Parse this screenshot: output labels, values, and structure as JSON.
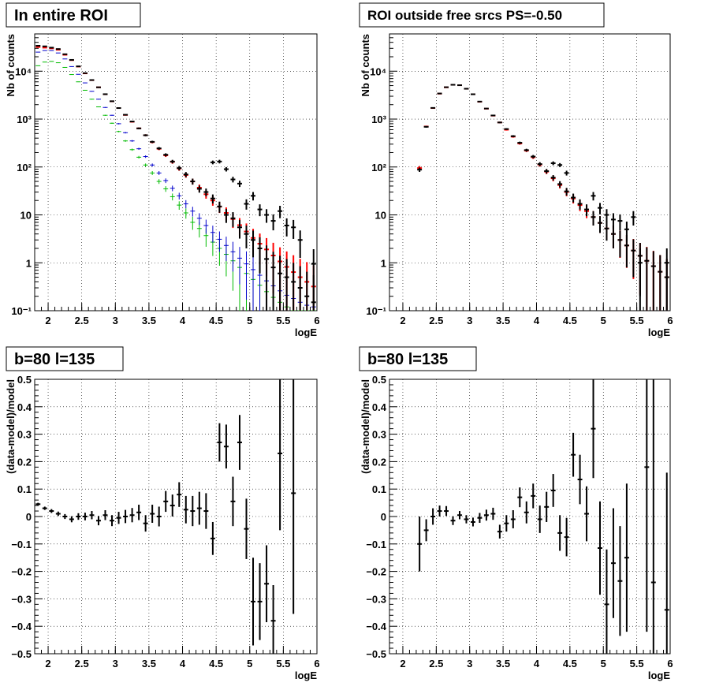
{
  "colors": {
    "data": "#000000",
    "model": "#ff0000",
    "blue": "#0000cc",
    "green": "#00bb00"
  },
  "chart_data": [
    {
      "panel": "top-left",
      "type": "scatter",
      "title": "In entire ROI",
      "xlabel": "logE",
      "ylabel": "Nb of counts",
      "xlim": [
        1.8,
        6.0
      ],
      "ylim": [
        0.1,
        60000
      ],
      "yscale": "log",
      "grid": true,
      "x_ticks": [
        "2",
        "2.5",
        "3",
        "3.5",
        "4",
        "4.5",
        "5",
        "5.5",
        "6"
      ],
      "y_ticks": [
        "10⁻¹",
        "1",
        "10",
        "10²",
        "10³",
        "10⁴"
      ],
      "series": [
        {
          "color": "green",
          "x": [
            1.85,
            1.95,
            2.05,
            2.15,
            2.25,
            2.35,
            2.45,
            2.55,
            2.65,
            2.75,
            2.85,
            2.95,
            3.05,
            3.15,
            3.25,
            3.35,
            3.45,
            3.55,
            3.65,
            3.75,
            3.85,
            3.95,
            4.05,
            4.15,
            4.25,
            4.35,
            4.45,
            4.55,
            4.65,
            4.75,
            4.85,
            4.95,
            5.05,
            5.15,
            5.25,
            5.35,
            5.45,
            5.55,
            5.65,
            5.75,
            5.85,
            5.95
          ],
          "y": [
            13000,
            15500,
            16000,
            15000,
            12000,
            8500,
            6000,
            4000,
            2600,
            1800,
            1200,
            820,
            550,
            350,
            230,
            160,
            110,
            75,
            50,
            35,
            24,
            16,
            11,
            7,
            5.2,
            3.7,
            2.7,
            2.0,
            1.5,
            1.1,
            0.8,
            0.6,
            0.45,
            0.34,
            0.25,
            0.19,
            0.15,
            0.12,
            0.1,
            0.1,
            0.1,
            0.1
          ]
        },
        {
          "color": "blue",
          "x": [
            1.85,
            1.95,
            2.05,
            2.15,
            2.25,
            2.35,
            2.45,
            2.55,
            2.65,
            2.75,
            2.85,
            2.95,
            3.05,
            3.15,
            3.25,
            3.35,
            3.45,
            3.55,
            3.65,
            3.75,
            3.85,
            3.95,
            4.05,
            4.15,
            4.25,
            4.35,
            4.45,
            4.55,
            4.65,
            4.75,
            4.85,
            4.95,
            5.05,
            5.15,
            5.25,
            5.35,
            5.45,
            5.55,
            5.65,
            5.75,
            5.85,
            5.95
          ],
          "y": [
            25000,
            27000,
            27000,
            24000,
            18000,
            12500,
            8600,
            5700,
            3800,
            2600,
            1750,
            1200,
            800,
            520,
            350,
            240,
            165,
            110,
            75,
            52,
            36,
            25,
            17,
            12,
            8.5,
            6,
            4.3,
            3.1,
            2.3,
            1.7,
            1.25,
            0.95,
            0.72,
            0.55,
            0.42,
            0.33,
            0.26,
            0.21,
            0.18,
            0.15,
            0.13,
            0.12
          ]
        },
        {
          "color": "model",
          "x": [
            1.85,
            1.95,
            2.05,
            2.15,
            2.25,
            2.35,
            2.45,
            2.55,
            2.65,
            2.75,
            2.85,
            2.95,
            3.05,
            3.15,
            3.25,
            3.35,
            3.45,
            3.55,
            3.65,
            3.75,
            3.85,
            3.95,
            4.05,
            4.15,
            4.25,
            4.35,
            4.45,
            4.55,
            4.65,
            4.75,
            4.85,
            4.95,
            5.05,
            5.15,
            5.25,
            5.35,
            5.45,
            5.55,
            5.65,
            5.75,
            5.85,
            5.95
          ],
          "y": [
            32000,
            31000,
            30000,
            28000,
            22000,
            17000,
            12500,
            9000,
            6500,
            4600,
            3300,
            2350,
            1700,
            1220,
            880,
            640,
            460,
            330,
            240,
            175,
            128,
            93,
            68,
            50,
            37,
            27,
            20,
            14.8,
            11,
            8.2,
            6.1,
            4.5,
            3.3,
            2.5,
            1.9,
            1.42,
            1.07,
            0.82,
            0.64,
            0.5,
            0.4,
            0.32
          ]
        },
        {
          "color": "data",
          "x": [
            1.85,
            1.95,
            2.05,
            2.15,
            2.25,
            2.35,
            2.45,
            2.55,
            2.65,
            2.75,
            2.85,
            2.95,
            3.05,
            3.15,
            3.25,
            3.35,
            3.45,
            3.55,
            3.65,
            3.75,
            3.85,
            3.95,
            4.05,
            4.15,
            4.25,
            4.35,
            4.45,
            4.55,
            4.65,
            4.75,
            4.85,
            4.95,
            5.05,
            5.15,
            5.25,
            5.35,
            5.45,
            5.55,
            5.65,
            5.75,
            5.85,
            5.95
          ],
          "y": [
            34000,
            33000,
            31000,
            29000,
            22600,
            17200,
            12600,
            9100,
            6530,
            4610,
            3310,
            2360,
            1700,
            1230,
            890,
            640,
            460,
            335,
            245,
            180,
            130,
            95,
            70,
            50,
            35,
            30,
            22,
            15,
            10,
            8.5,
            5.5,
            4,
            3,
            2,
            1.2,
            0.8,
            0.6,
            0.5,
            0.4,
            0.3,
            0.2,
            0.15
          ],
          "yerr": [
            180,
            180,
            175,
            170,
            150,
            130,
            112,
            95,
            80,
            68,
            57,
            48,
            41,
            35,
            30,
            25,
            21,
            18,
            16,
            13,
            11,
            10,
            8.4,
            7.1,
            5.9,
            5.5,
            4.7,
            3.9,
            3.2,
            2.9,
            2.3,
            2,
            1.7,
            1.4,
            1.1,
            0.9,
            0.8,
            0.7,
            0.6,
            0.55,
            0.45,
            0.4
          ]
        }
      ],
      "visible_data_points": [
        {
          "x": 4.45,
          "y": 125
        },
        {
          "x": 4.55,
          "y": 130
        },
        {
          "x": 4.65,
          "y": 90
        },
        {
          "x": 4.75,
          "y": 55
        },
        {
          "x": 4.85,
          "y": 45
        },
        {
          "x": 4.95,
          "y": 17
        },
        {
          "x": 5.05,
          "y": 25
        },
        {
          "x": 5.15,
          "y": 13
        },
        {
          "x": 5.25,
          "y": 10
        },
        {
          "x": 5.35,
          "y": 7.5
        },
        {
          "x": 5.45,
          "y": 12
        },
        {
          "x": 5.55,
          "y": 6
        },
        {
          "x": 5.65,
          "y": 5.5
        },
        {
          "x": 5.75,
          "y": 3
        },
        {
          "x": 5.95,
          "y": 0.95
        }
      ]
    },
    {
      "panel": "top-right",
      "type": "scatter",
      "title": "ROI outside free srcs PS=-0.50",
      "xlabel": "logE",
      "ylabel": "Nb of counts",
      "xlim": [
        1.8,
        6.0
      ],
      "ylim": [
        0.1,
        60000
      ],
      "yscale": "log",
      "grid": true,
      "x_ticks": [
        "2",
        "2.5",
        "3",
        "3.5",
        "4",
        "4.5",
        "5",
        "5.5",
        "6"
      ],
      "y_ticks": [
        "10⁻¹",
        "1",
        "10",
        "10²",
        "10³",
        "10⁴"
      ],
      "series": [
        {
          "color": "model",
          "x": [
            2.25,
            2.35,
            2.45,
            2.55,
            2.65,
            2.75,
            2.85,
            2.95,
            3.05,
            3.15,
            3.25,
            3.35,
            3.45,
            3.55,
            3.65,
            3.75,
            3.85,
            3.95,
            4.05,
            4.15,
            4.25,
            4.35,
            4.45,
            4.55,
            4.65,
            4.75,
            4.85,
            4.95,
            5.05,
            5.15,
            5.25,
            5.35,
            5.45,
            5.55,
            5.65,
            5.75,
            5.85,
            5.95
          ],
          "y": [
            95,
            700,
            1700,
            3400,
            4600,
            5200,
            5100,
            4300,
            3300,
            2300,
            1650,
            1180,
            850,
            600,
            430,
            310,
            220,
            160,
            112,
            80,
            58,
            42,
            30,
            22,
            16,
            12,
            9,
            6.8,
            5.2,
            4,
            3,
            2.3,
            1.8,
            1.4,
            1.1,
            0.85,
            0.65,
            0.5
          ]
        },
        {
          "color": "data",
          "x": [
            2.25,
            2.35,
            2.45,
            2.55,
            2.65,
            2.75,
            2.85,
            2.95,
            3.05,
            3.15,
            3.25,
            3.35,
            3.45,
            3.55,
            3.65,
            3.75,
            3.85,
            3.95,
            4.05,
            4.15,
            4.25,
            4.35,
            4.45,
            4.55,
            4.65,
            4.75,
            4.85,
            4.95,
            5.05,
            5.15,
            5.25,
            5.35,
            5.45,
            5.55,
            5.65,
            5.75,
            5.85,
            5.95
          ],
          "y": [
            88,
            690,
            1710,
            3420,
            4630,
            5200,
            5100,
            4300,
            3300,
            2320,
            1660,
            1190,
            850,
            620,
            440,
            320,
            225,
            165,
            115,
            82,
            60,
            44,
            31,
            23,
            17,
            13,
            9,
            6.8,
            5.2,
            4,
            3,
            2.3,
            1.8,
            1.4,
            1.1,
            0.85,
            0.65,
            0.5
          ],
          "yerr": [
            9,
            26,
            41,
            58,
            68,
            72,
            71,
            66,
            57,
            48,
            41,
            34,
            29,
            25,
            21,
            18,
            15,
            13,
            11,
            9,
            7.7,
            6.6,
            5.6,
            4.8,
            4.1,
            3.6,
            3,
            2.6,
            2.3,
            2,
            1.7,
            1.5,
            1.3,
            1.2,
            1,
            0.9,
            0.8,
            0.7
          ]
        }
      ],
      "visible_data_points": [
        {
          "x": 4.25,
          "y": 120
        },
        {
          "x": 4.35,
          "y": 110
        },
        {
          "x": 4.45,
          "y": 75
        },
        {
          "x": 4.85,
          "y": 25
        },
        {
          "x": 4.95,
          "y": 14
        },
        {
          "x": 5.05,
          "y": 10
        },
        {
          "x": 5.15,
          "y": 8
        },
        {
          "x": 5.25,
          "y": 7.5
        },
        {
          "x": 5.35,
          "y": 5
        },
        {
          "x": 5.45,
          "y": 9
        },
        {
          "x": 5.55,
          "y": 1
        },
        {
          "x": 5.95,
          "y": 1
        }
      ]
    },
    {
      "panel": "bottom-left",
      "type": "scatter",
      "title": "b=80 l=135",
      "xlabel": "logE",
      "ylabel": "(data-model)/model",
      "xlim": [
        1.8,
        6.0
      ],
      "ylim": [
        -0.5,
        0.5
      ],
      "grid": true,
      "x_ticks": [
        "2",
        "2.5",
        "3",
        "3.5",
        "4",
        "4.5",
        "5",
        "5.5",
        "6"
      ],
      "y_ticks": [
        "−0.5",
        "−0.4",
        "−0.3",
        "−0.2",
        "−0.1",
        "0",
        "0.1",
        "0.2",
        "0.3",
        "0.4",
        "0.5"
      ],
      "series": [
        {
          "color": "data",
          "x": [
            1.85,
            1.95,
            2.05,
            2.15,
            2.25,
            2.35,
            2.45,
            2.55,
            2.65,
            2.75,
            2.85,
            2.95,
            3.05,
            3.15,
            3.25,
            3.35,
            3.45,
            3.55,
            3.65,
            3.75,
            3.85,
            3.95,
            4.05,
            4.15,
            4.25,
            4.35,
            4.45,
            4.55,
            4.65,
            4.75,
            4.85,
            4.95,
            5.05,
            5.15,
            5.25,
            5.35,
            5.45,
            5.65
          ],
          "y": [
            0.045,
            0.03,
            0.02,
            0.01,
            0.0,
            -0.01,
            0.0,
            0.0,
            0.005,
            -0.015,
            0.005,
            -0.015,
            -0.005,
            0.0,
            0.005,
            0.015,
            -0.025,
            0.01,
            0.0,
            0.055,
            0.04,
            0.08,
            0.025,
            0.02,
            0.03,
            0.02,
            -0.08,
            0.27,
            0.255,
            0.055,
            0.27,
            -0.045,
            -0.31,
            -0.31,
            -0.245,
            -0.38,
            0.23,
            0.085
          ],
          "yerr": [
            0.005,
            0.006,
            0.007,
            0.008,
            0.009,
            0.011,
            0.012,
            0.014,
            0.015,
            0.017,
            0.018,
            0.02,
            0.022,
            0.024,
            0.026,
            0.028,
            0.03,
            0.033,
            0.036,
            0.038,
            0.04,
            0.045,
            0.05,
            0.055,
            0.06,
            0.065,
            0.06,
            0.07,
            0.08,
            0.09,
            0.1,
            0.11,
            0.16,
            0.14,
            0.14,
            0.13,
            0.28,
            0.44
          ]
        }
      ]
    },
    {
      "panel": "bottom-right",
      "type": "scatter",
      "title": "b=80 l=135",
      "xlabel": "logE",
      "ylabel": "(data-model)/model",
      "xlim": [
        1.8,
        6.0
      ],
      "ylim": [
        -0.5,
        0.5
      ],
      "grid": true,
      "x_ticks": [
        "2",
        "2.5",
        "3",
        "3.5",
        "4",
        "4.5",
        "5",
        "5.5",
        "6"
      ],
      "y_ticks": [
        "−0.5",
        "−0.4",
        "−0.3",
        "−0.2",
        "−0.1",
        "0",
        "0.1",
        "0.2",
        "0.3",
        "0.4",
        "0.5"
      ],
      "series": [
        {
          "color": "data",
          "x": [
            2.25,
            2.35,
            2.45,
            2.55,
            2.65,
            2.75,
            2.85,
            2.95,
            3.05,
            3.15,
            3.25,
            3.35,
            3.45,
            3.55,
            3.65,
            3.75,
            3.85,
            3.95,
            4.05,
            4.15,
            4.25,
            4.35,
            4.45,
            4.55,
            4.65,
            4.75,
            4.85,
            4.95,
            5.05,
            5.15,
            5.25,
            5.35,
            5.65,
            5.75,
            5.95
          ],
          "y": [
            -0.1,
            -0.05,
            0.0,
            0.02,
            0.02,
            -0.015,
            0.005,
            -0.01,
            -0.02,
            -0.005,
            0.005,
            0.01,
            -0.055,
            -0.025,
            -0.01,
            0.07,
            0.015,
            0.075,
            -0.01,
            0.035,
            0.095,
            -0.06,
            -0.075,
            0.225,
            0.135,
            0.01,
            0.32,
            -0.115,
            -0.32,
            -0.17,
            -0.235,
            -0.15,
            0.18,
            -0.24,
            -0.34
          ],
          "yerr": [
            0.1,
            0.04,
            0.03,
            0.02,
            0.018,
            0.016,
            0.015,
            0.015,
            0.016,
            0.018,
            0.02,
            0.022,
            0.025,
            0.03,
            0.033,
            0.036,
            0.04,
            0.045,
            0.05,
            0.055,
            0.06,
            0.065,
            0.07,
            0.08,
            0.09,
            0.1,
            0.18,
            0.17,
            0.2,
            0.2,
            0.2,
            0.27,
            0.6,
            0.8,
            0.5
          ]
        }
      ]
    }
  ]
}
